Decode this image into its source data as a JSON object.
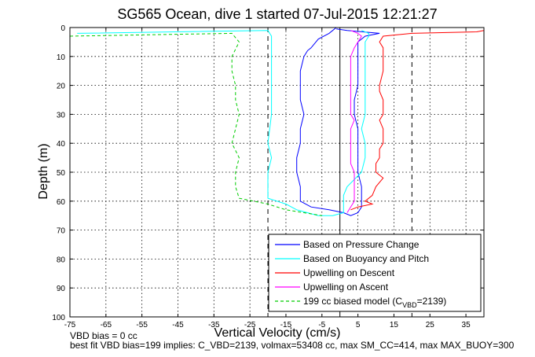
{
  "chart_data": {
    "type": "line",
    "title": "SG565 Ocean, dive 1 started 07-Jul-2015 12:21:27",
    "xlabel": "Vertical Velocity (cm/s)",
    "ylabel": "Depth (m)",
    "xlim": [
      -75,
      40
    ],
    "ylim": [
      0,
      100
    ],
    "y_reversed": true,
    "x_ticks": [
      -75,
      -65,
      -55,
      -45,
      -35,
      -25,
      -15,
      -5,
      5,
      15,
      25,
      35
    ],
    "y_ticks": [
      0,
      10,
      20,
      30,
      40,
      50,
      60,
      70,
      80,
      90,
      100
    ],
    "grid": true,
    "legend_position": "bottom-right",
    "reference_lines": [
      {
        "x": 0,
        "style": "solid",
        "color": "#000000"
      },
      {
        "x": -20,
        "style": "dashed",
        "color": "#000000"
      },
      {
        "x": 20,
        "style": "dashed",
        "color": "#000000"
      }
    ],
    "series": [
      {
        "name": "Based on Pressure Change",
        "color": "#0000ff",
        "style": "solid",
        "points": [
          [
            -1,
            0
          ],
          [
            -2,
            1
          ],
          [
            -3,
            2
          ],
          [
            -6,
            4
          ],
          [
            -8,
            7
          ],
          [
            -9,
            8
          ],
          [
            -10,
            10
          ],
          [
            -11,
            15
          ],
          [
            -11,
            20
          ],
          [
            -11,
            25
          ],
          [
            -10,
            30
          ],
          [
            -11,
            35
          ],
          [
            -11,
            40
          ],
          [
            -12,
            45
          ],
          [
            -12,
            50
          ],
          [
            -11,
            55
          ],
          [
            -11,
            60
          ],
          [
            -8,
            62
          ],
          [
            -3,
            63
          ],
          [
            1,
            64
          ],
          [
            3,
            65
          ],
          [
            5,
            64
          ],
          [
            6,
            62
          ],
          [
            6,
            60
          ],
          [
            6,
            55
          ],
          [
            5,
            50
          ],
          [
            5,
            45
          ],
          [
            5,
            40
          ],
          [
            5,
            35
          ],
          [
            4,
            30
          ],
          [
            4,
            25
          ],
          [
            5,
            20
          ],
          [
            5,
            15
          ],
          [
            5,
            10
          ],
          [
            5,
            7
          ],
          [
            5,
            5
          ],
          [
            7,
            3
          ],
          [
            11,
            2
          ],
          [
            2,
            1
          ],
          [
            -1,
            0.5
          ]
        ]
      },
      {
        "name": "Based on Buoyancy and Pitch",
        "color": "#00ffff",
        "style": "solid",
        "points": [
          [
            -73,
            2
          ],
          [
            -20,
            1
          ],
          [
            -19,
            3
          ],
          [
            -19,
            10
          ],
          [
            -19,
            20
          ],
          [
            -19,
            30
          ],
          [
            -20,
            40
          ],
          [
            -19,
            45
          ],
          [
            -20,
            50
          ],
          [
            -20,
            55
          ],
          [
            -20,
            59
          ],
          [
            -15,
            61
          ],
          [
            -12,
            63
          ],
          [
            -9,
            64
          ],
          [
            -6,
            65
          ],
          [
            -2,
            65
          ],
          [
            1,
            64
          ],
          [
            1,
            60
          ],
          [
            1,
            58
          ],
          [
            2,
            55
          ],
          [
            6,
            50
          ],
          [
            7,
            45
          ],
          [
            7,
            40
          ],
          [
            6,
            35
          ],
          [
            7,
            30
          ],
          [
            7,
            25
          ],
          [
            7,
            20
          ],
          [
            7,
            15
          ],
          [
            7,
            10
          ],
          [
            7,
            5
          ],
          [
            8,
            3
          ],
          [
            8,
            2
          ],
          [
            6,
            1
          ]
        ]
      },
      {
        "name": "Upwelling on Descent",
        "color": "#ff0000",
        "style": "solid",
        "points": [
          [
            3,
            63
          ],
          [
            5,
            62
          ],
          [
            9,
            61
          ],
          [
            7,
            60
          ],
          [
            9,
            58
          ],
          [
            10,
            55
          ],
          [
            12,
            52
          ],
          [
            10,
            50
          ],
          [
            10,
            47
          ],
          [
            11,
            45
          ],
          [
            11,
            42
          ],
          [
            12,
            40
          ],
          [
            12,
            35
          ],
          [
            11,
            32
          ],
          [
            12,
            30
          ],
          [
            12,
            25
          ],
          [
            11,
            22
          ],
          [
            11,
            20
          ],
          [
            12,
            15
          ],
          [
            12,
            10
          ],
          [
            12,
            7
          ],
          [
            11,
            5
          ],
          [
            12,
            3
          ],
          [
            20,
            2
          ],
          [
            38,
            1.5
          ],
          [
            40,
            1
          ]
        ]
      },
      {
        "name": "Upwelling on Ascent",
        "color": "#ff00ff",
        "style": "solid",
        "points": [
          [
            2,
            64
          ],
          [
            3,
            62
          ],
          [
            4,
            60
          ],
          [
            4,
            57
          ],
          [
            4,
            55
          ],
          [
            4,
            50
          ],
          [
            3,
            47
          ],
          [
            3,
            45
          ],
          [
            3,
            40
          ],
          [
            3,
            35
          ],
          [
            4,
            32
          ],
          [
            3,
            30
          ],
          [
            3,
            25
          ],
          [
            3,
            20
          ],
          [
            3,
            15
          ],
          [
            3,
            10
          ],
          [
            4,
            7
          ],
          [
            5,
            5
          ],
          [
            6,
            3
          ],
          [
            5,
            2
          ],
          [
            3,
            1
          ]
        ]
      },
      {
        "name": "199 cc biased model (C_VBD=2139)",
        "legend_main": "199 cc biased model (C",
        "legend_sub": "VBD",
        "legend_tail": "=2139)",
        "color": "#00cc00",
        "style": "dashed",
        "points": [
          [
            -75,
            3
          ],
          [
            -30,
            2
          ],
          [
            -28,
            5
          ],
          [
            -30,
            10
          ],
          [
            -30,
            15
          ],
          [
            -29,
            20
          ],
          [
            -29,
            25
          ],
          [
            -28,
            30
          ],
          [
            -29,
            35
          ],
          [
            -30,
            40
          ],
          [
            -28,
            45
          ],
          [
            -29,
            50
          ],
          [
            -29,
            55
          ],
          [
            -28,
            59
          ],
          [
            -20,
            61
          ],
          [
            -15,
            63
          ],
          [
            -10,
            64
          ],
          [
            -5,
            65
          ]
        ]
      }
    ]
  },
  "footnotes": {
    "vbd_bias": "VBD bias = 0 cc",
    "best_fit": "best fit VBD bias=199 implies: C_VBD=2139, volmax=53408 cc, max SM_CC=414, max MAX_BUOY=300"
  }
}
